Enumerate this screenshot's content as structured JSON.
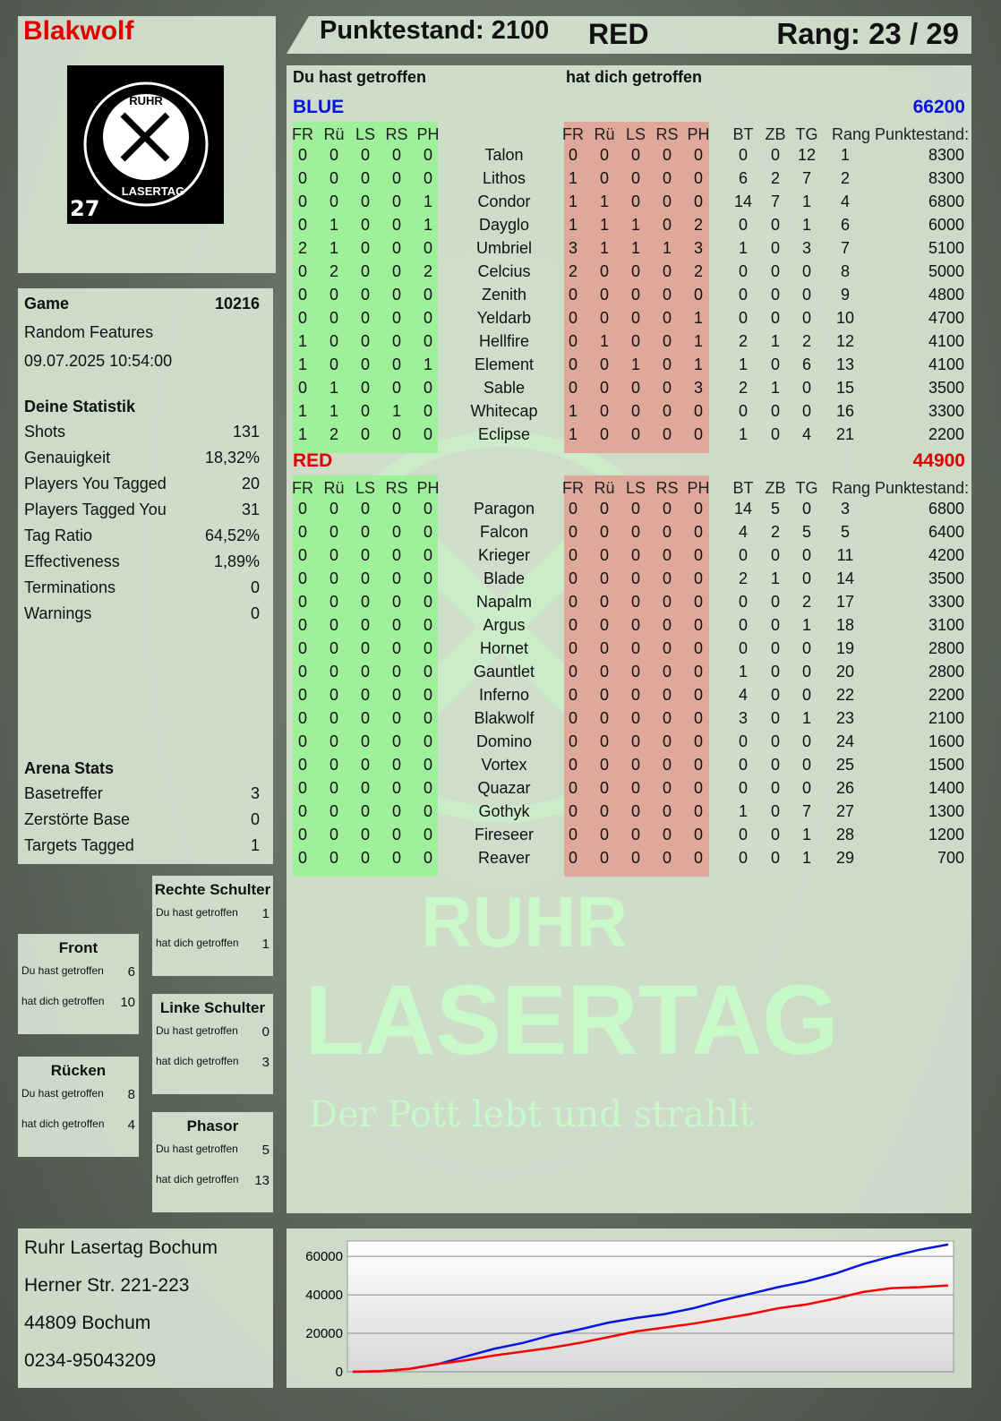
{
  "player": {
    "name": "Blakwolf",
    "score_label": "Punktestand: 2100",
    "team": "RED",
    "rank_label": "Rang: 23 / 29",
    "logo_text": "RUHR LASERTAG",
    "logo_number": "27"
  },
  "game": {
    "label": "Game",
    "id": "10216",
    "mode": "Random Features",
    "datetime": "09.07.2025 10:54:00"
  },
  "stats": {
    "title": "Deine Statistik",
    "items": [
      {
        "label": "Shots",
        "value": "131"
      },
      {
        "label": "Genauigkeit",
        "value": "18,32%"
      },
      {
        "label": "Players You Tagged",
        "value": "20"
      },
      {
        "label": "Players Tagged You",
        "value": "31"
      },
      {
        "label": "Tag Ratio",
        "value": "64,52%"
      },
      {
        "label": "Effectiveness",
        "value": "1,89%"
      },
      {
        "label": "Terminations",
        "value": "0"
      },
      {
        "label": "Warnings",
        "value": "0"
      }
    ]
  },
  "arena": {
    "title": "Arena Stats",
    "items": [
      {
        "label": "Basetreffer",
        "value": "3"
      },
      {
        "label": "Zerstörte Base",
        "value": "0"
      },
      {
        "label": "Targets Tagged",
        "value": "1"
      }
    ]
  },
  "zones": [
    {
      "title": "Rechte Schulter",
      "hit_label": "Du hast getroffen",
      "hit": "1",
      "got_label": "hat dich getroffen",
      "got": "1"
    },
    {
      "title": "Front",
      "hit_label": "Du hast getroffen",
      "hit": "6",
      "got_label": "hat dich getroffen",
      "got": "10"
    },
    {
      "title": "Linke Schulter",
      "hit_label": "Du hast getroffen",
      "hit": "0",
      "got_label": "hat dich getroffen",
      "got": "3"
    },
    {
      "title": "Rücken",
      "hit_label": "Du hast getroffen",
      "hit": "8",
      "got_label": "hat dich getroffen",
      "got": "4"
    },
    {
      "title": "Phasor",
      "hit_label": "Du hast getroffen",
      "hit": "5",
      "got_label": "hat dich getroffen",
      "got": "13"
    }
  ],
  "address": [
    "Ruhr Lasertag Bochum",
    "Herner Str. 221-223",
    "44809 Bochum",
    "0234-95043209"
  ],
  "table": {
    "you_hit": "Du hast getroffen",
    "hit_you": "hat dich getroffen",
    "columns": [
      "FR",
      "Rü",
      "LS",
      "RS",
      "PH",
      "FR",
      "Rü",
      "LS",
      "RS",
      "PH",
      "BT",
      "ZB",
      "TG",
      "Rang",
      "Punktestand:"
    ],
    "teams": [
      {
        "name": "BLUE",
        "score": "66200",
        "color": "#0a14d8",
        "players": [
          [
            "Talon",
            [
              0,
              0,
              0,
              0,
              0
            ],
            [
              0,
              0,
              0,
              0,
              0
            ],
            0,
            0,
            12,
            1,
            8300
          ],
          [
            "Lithos",
            [
              0,
              0,
              0,
              0,
              0
            ],
            [
              1,
              0,
              0,
              0,
              0
            ],
            6,
            2,
            7,
            2,
            8300
          ],
          [
            "Condor",
            [
              0,
              0,
              0,
              0,
              1
            ],
            [
              1,
              1,
              0,
              0,
              0
            ],
            14,
            7,
            1,
            4,
            6800
          ],
          [
            "Dayglo",
            [
              0,
              1,
              0,
              0,
              1
            ],
            [
              1,
              1,
              1,
              0,
              2
            ],
            0,
            0,
            1,
            6,
            6000
          ],
          [
            "Umbriel",
            [
              2,
              1,
              0,
              0,
              0
            ],
            [
              3,
              1,
              1,
              1,
              3
            ],
            1,
            0,
            3,
            7,
            5100
          ],
          [
            "Celcius",
            [
              0,
              2,
              0,
              0,
              2
            ],
            [
              2,
              0,
              0,
              0,
              2
            ],
            0,
            0,
            0,
            8,
            5000
          ],
          [
            "Zenith",
            [
              0,
              0,
              0,
              0,
              0
            ],
            [
              0,
              0,
              0,
              0,
              0
            ],
            0,
            0,
            0,
            9,
            4800
          ],
          [
            "Yeldarb",
            [
              0,
              0,
              0,
              0,
              0
            ],
            [
              0,
              0,
              0,
              0,
              1
            ],
            0,
            0,
            0,
            10,
            4700
          ],
          [
            "Hellfire",
            [
              1,
              0,
              0,
              0,
              0
            ],
            [
              0,
              1,
              0,
              0,
              1
            ],
            2,
            1,
            2,
            12,
            4100
          ],
          [
            "Element",
            [
              1,
              0,
              0,
              0,
              1
            ],
            [
              0,
              0,
              1,
              0,
              1
            ],
            1,
            0,
            6,
            13,
            4100
          ],
          [
            "Sable",
            [
              0,
              1,
              0,
              0,
              0
            ],
            [
              0,
              0,
              0,
              0,
              3
            ],
            2,
            1,
            0,
            15,
            3500
          ],
          [
            "Whitecap",
            [
              1,
              1,
              0,
              1,
              0
            ],
            [
              1,
              0,
              0,
              0,
              0
            ],
            0,
            0,
            0,
            16,
            3300
          ],
          [
            "Eclipse",
            [
              1,
              2,
              0,
              0,
              0
            ],
            [
              1,
              0,
              0,
              0,
              0
            ],
            1,
            0,
            4,
            21,
            2200
          ]
        ]
      },
      {
        "name": "RED",
        "score": "44900",
        "color": "#e00000",
        "players": [
          [
            "Paragon",
            [
              0,
              0,
              0,
              0,
              0
            ],
            [
              0,
              0,
              0,
              0,
              0
            ],
            14,
            5,
            0,
            3,
            6800
          ],
          [
            "Falcon",
            [
              0,
              0,
              0,
              0,
              0
            ],
            [
              0,
              0,
              0,
              0,
              0
            ],
            4,
            2,
            5,
            5,
            6400
          ],
          [
            "Krieger",
            [
              0,
              0,
              0,
              0,
              0
            ],
            [
              0,
              0,
              0,
              0,
              0
            ],
            0,
            0,
            0,
            11,
            4200
          ],
          [
            "Blade",
            [
              0,
              0,
              0,
              0,
              0
            ],
            [
              0,
              0,
              0,
              0,
              0
            ],
            2,
            1,
            0,
            14,
            3500
          ],
          [
            "Napalm",
            [
              0,
              0,
              0,
              0,
              0
            ],
            [
              0,
              0,
              0,
              0,
              0
            ],
            0,
            0,
            2,
            17,
            3300
          ],
          [
            "Argus",
            [
              0,
              0,
              0,
              0,
              0
            ],
            [
              0,
              0,
              0,
              0,
              0
            ],
            0,
            0,
            1,
            18,
            3100
          ],
          [
            "Hornet",
            [
              0,
              0,
              0,
              0,
              0
            ],
            [
              0,
              0,
              0,
              0,
              0
            ],
            0,
            0,
            0,
            19,
            2800
          ],
          [
            "Gauntlet",
            [
              0,
              0,
              0,
              0,
              0
            ],
            [
              0,
              0,
              0,
              0,
              0
            ],
            1,
            0,
            0,
            20,
            2800
          ],
          [
            "Inferno",
            [
              0,
              0,
              0,
              0,
              0
            ],
            [
              0,
              0,
              0,
              0,
              0
            ],
            4,
            0,
            0,
            22,
            2200
          ],
          [
            "Blakwolf",
            [
              0,
              0,
              0,
              0,
              0
            ],
            [
              0,
              0,
              0,
              0,
              0
            ],
            3,
            0,
            1,
            23,
            2100
          ],
          [
            "Domino",
            [
              0,
              0,
              0,
              0,
              0
            ],
            [
              0,
              0,
              0,
              0,
              0
            ],
            0,
            0,
            0,
            24,
            1600
          ],
          [
            "Vortex",
            [
              0,
              0,
              0,
              0,
              0
            ],
            [
              0,
              0,
              0,
              0,
              0
            ],
            0,
            0,
            0,
            25,
            1500
          ],
          [
            "Quazar",
            [
              0,
              0,
              0,
              0,
              0
            ],
            [
              0,
              0,
              0,
              0,
              0
            ],
            0,
            0,
            0,
            26,
            1400
          ],
          [
            "Gothyk",
            [
              0,
              0,
              0,
              0,
              0
            ],
            [
              0,
              0,
              0,
              0,
              0
            ],
            1,
            0,
            7,
            27,
            1300
          ],
          [
            "Fireseer",
            [
              0,
              0,
              0,
              0,
              0
            ],
            [
              0,
              0,
              0,
              0,
              0
            ],
            0,
            0,
            1,
            28,
            1200
          ],
          [
            "Reaver",
            [
              0,
              0,
              0,
              0,
              0
            ],
            [
              0,
              0,
              0,
              0,
              0
            ],
            0,
            0,
            1,
            29,
            700
          ]
        ]
      }
    ]
  },
  "watermark": {
    "line1": "RUHR",
    "line2": "LASERTAG",
    "slogan": "Der Pott lebt und strahlt"
  },
  "chart_data": {
    "type": "line",
    "ylim": [
      0,
      68000
    ],
    "yticks": [
      "0",
      "20000",
      "40000",
      "60000"
    ],
    "grid": true,
    "series": [
      {
        "color": "#0a14e0",
        "values": [
          0,
          300,
          1500,
          4000,
          8000,
          12000,
          15000,
          19000,
          22000,
          25500,
          28000,
          30000,
          33000,
          37000,
          40500,
          44000,
          47000,
          51000,
          56000,
          60000,
          63500,
          66200
        ]
      },
      {
        "color": "#ff0000",
        "values": [
          0,
          300,
          1500,
          4000,
          6000,
          8500,
          10500,
          12500,
          15000,
          18000,
          21000,
          23000,
          25000,
          27500,
          30000,
          33000,
          35000,
          38000,
          41500,
          43500,
          44000,
          44900
        ]
      }
    ]
  },
  "colors": {
    "hit_band": "#9ff09a",
    "got_band": "#e0a89a"
  }
}
